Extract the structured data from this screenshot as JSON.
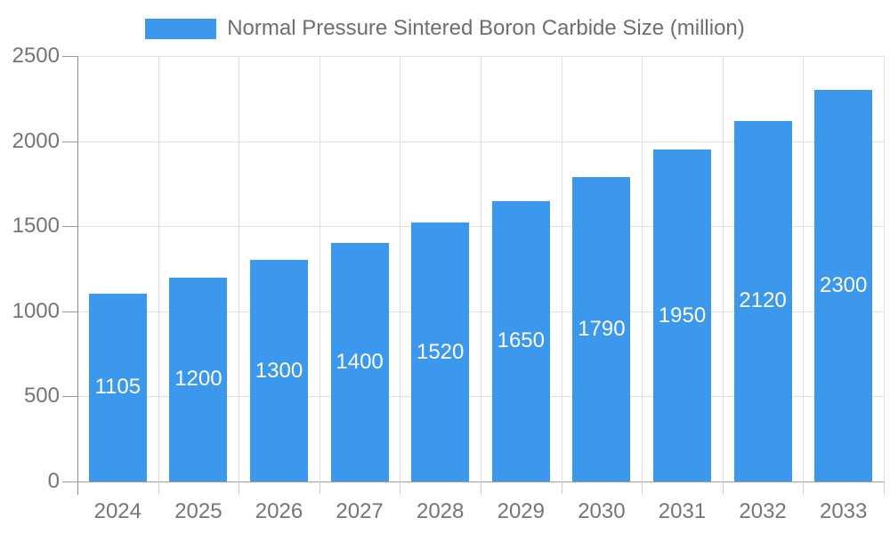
{
  "chart_data": {
    "type": "bar",
    "title": "Normal Pressure Sintered Boron Carbide Size (million)",
    "legend_position": "top-center",
    "categories": [
      "2024",
      "2025",
      "2026",
      "2027",
      "2028",
      "2029",
      "2030",
      "2031",
      "2032",
      "2033"
    ],
    "series": [
      {
        "name": "Normal Pressure Sintered Boron Carbide Size (million)",
        "values": [
          1105,
          1200,
          1300,
          1400,
          1520,
          1650,
          1790,
          1950,
          2120,
          2300
        ]
      }
    ],
    "xlabel": "",
    "ylabel": "",
    "ylim": [
      0,
      2500
    ],
    "yticks": [
      0,
      500,
      1000,
      1500,
      2000,
      2500
    ],
    "ytick_labels": [
      "0",
      "500",
      "1000",
      "1500",
      "2000",
      "2500"
    ],
    "grid": true,
    "colors": {
      "bar": "#3B98EC",
      "bar_value_text": "#FFFFFF",
      "axis_text": "#757575",
      "legend_text": "#6E6E6E",
      "gridline": "#E0E0E0",
      "y_axis_line": "#8C8C8C",
      "x_axis_line": "#A0A0A0",
      "y_tick": "#999999",
      "x_tick": "#CCCCCC",
      "background": "#FFFFFF"
    }
  }
}
